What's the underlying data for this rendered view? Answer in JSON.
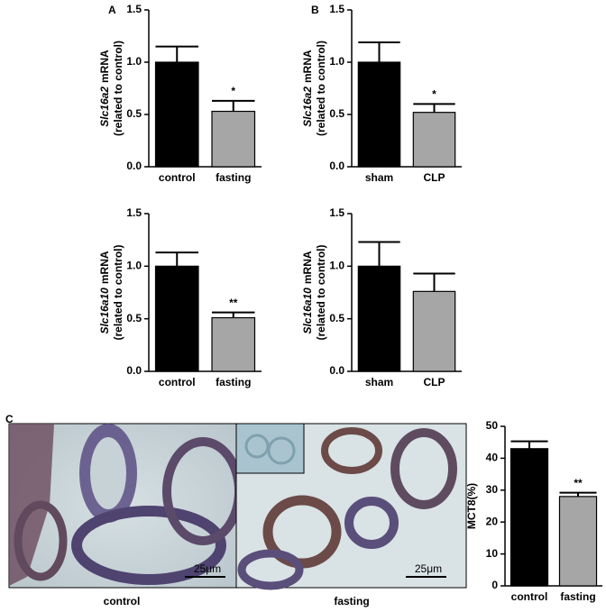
{
  "panel_labels": [
    "A",
    "B",
    "C"
  ],
  "chart_data": [
    {
      "type": "bar",
      "ylabel_gene": "Slc16a2",
      "ylabel_unit": "mRNA",
      "ylabel_note": "(related to control)",
      "categories": [
        "control",
        "fasting"
      ],
      "values": [
        1.0,
        0.53
      ],
      "errors": [
        0.15,
        0.1
      ],
      "annotations": [
        null,
        "*"
      ],
      "colors": [
        "#000000",
        "#a6a6a6"
      ],
      "ylim": [
        0,
        1.5
      ],
      "yticks": [
        {
          "value": 0,
          "label": "0.0"
        },
        {
          "value": 0.5,
          "label": "0.5"
        },
        {
          "value": 1,
          "label": "1.0"
        },
        {
          "value": 1.5,
          "label": "1.5"
        }
      ]
    },
    {
      "type": "bar",
      "ylabel_gene": "Slc16a2",
      "ylabel_unit": "mRNA",
      "ylabel_note": "(related to control)",
      "categories": [
        "sham",
        "CLP"
      ],
      "values": [
        1.0,
        0.52
      ],
      "errors": [
        0.19,
        0.08
      ],
      "annotations": [
        null,
        "*"
      ],
      "colors": [
        "#000000",
        "#a6a6a6"
      ],
      "ylim": [
        0,
        1.5
      ],
      "yticks": [
        {
          "value": 0,
          "label": "0.0"
        },
        {
          "value": 0.5,
          "label": "0.5"
        },
        {
          "value": 1,
          "label": "1.0"
        },
        {
          "value": 1.5,
          "label": "1.5"
        }
      ]
    },
    {
      "type": "bar",
      "ylabel_gene": "Slc16a10",
      "ylabel_unit": "mRNA",
      "ylabel_note": "(related to control)",
      "categories": [
        "control",
        "fasting"
      ],
      "values": [
        1.0,
        0.51
      ],
      "errors": [
        0.13,
        0.05
      ],
      "annotations": [
        null,
        "**"
      ],
      "colors": [
        "#000000",
        "#a6a6a6"
      ],
      "ylim": [
        0,
        1.5
      ],
      "yticks": [
        {
          "value": 0,
          "label": "0.0"
        },
        {
          "value": 0.5,
          "label": "0.5"
        },
        {
          "value": 1,
          "label": "1.0"
        },
        {
          "value": 1.5,
          "label": "1.5"
        }
      ]
    },
    {
      "type": "bar",
      "ylabel_gene": "Slc16a10",
      "ylabel_unit": "mRNA",
      "ylabel_note": "(related to control)",
      "categories": [
        "sham",
        "CLP"
      ],
      "values": [
        1.0,
        0.76
      ],
      "errors": [
        0.23,
        0.17
      ],
      "annotations": [
        null,
        null
      ],
      "colors": [
        "#000000",
        "#a6a6a6"
      ],
      "ylim": [
        0,
        1.5
      ],
      "yticks": [
        {
          "value": 0,
          "label": "0.0"
        },
        {
          "value": 0.5,
          "label": "0.5"
        },
        {
          "value": 1,
          "label": "1.0"
        },
        {
          "value": 1.5,
          "label": "1.5"
        }
      ]
    },
    {
      "type": "bar",
      "ylabel": "MCT8(%)",
      "categories": [
        "control",
        "fasting"
      ],
      "values": [
        43,
        28
      ],
      "errors": [
        2.3,
        1.2
      ],
      "annotations": [
        null,
        "**"
      ],
      "colors": [
        "#000000",
        "#a6a6a6"
      ],
      "ylim": [
        0,
        50
      ],
      "yticks": [
        0,
        10,
        20,
        30,
        40,
        50
      ]
    }
  ],
  "micrographs": {
    "scale_bars": [
      "25μm",
      "25μm"
    ],
    "captions": [
      "control",
      "fasting"
    ]
  }
}
